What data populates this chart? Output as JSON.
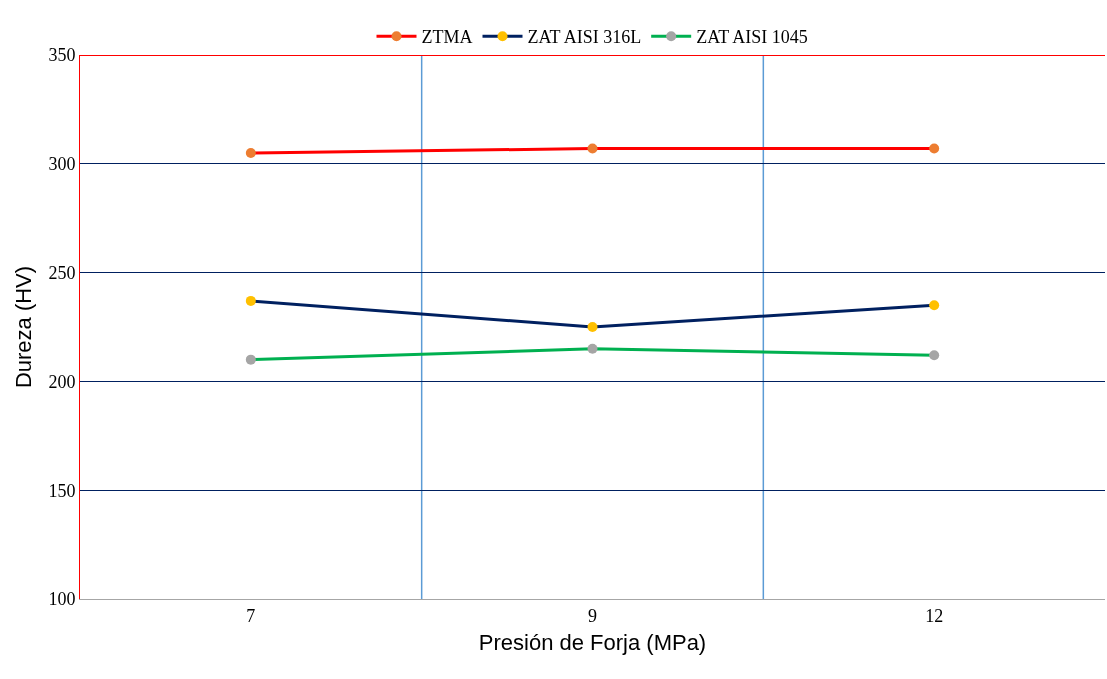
{
  "chart_data": {
    "type": "line",
    "xlabel": "Presión de Forja (MPa)",
    "ylabel": "Dureza (HV)",
    "categories": [
      "7",
      "9",
      "12"
    ],
    "series": [
      {
        "name": "ZTMA",
        "color": "#ff0000",
        "colors": [
          "#ed7d31",
          "#ed7d31",
          "#ed7d31"
        ],
        "values": [
          305,
          307,
          307
        ]
      },
      {
        "name": "ZAT AISI 316L",
        "color": "#002060",
        "colors": [
          "#ffc000",
          "#ffc000",
          "#ffc000"
        ],
        "values": [
          237,
          225,
          235
        ]
      },
      {
        "name": "ZAT AISI 1045",
        "color": "#00b050",
        "colors": [
          "#a5a5a5",
          "#a5a5a5",
          "#a5a5a5"
        ],
        "values": [
          210,
          215,
          212
        ]
      }
    ],
    "ylim": [
      100,
      350
    ],
    "yticks": [
      100,
      150,
      200,
      250,
      300,
      350
    ],
    "grid": true,
    "legend": "top",
    "marker": "circle",
    "line_style": "solid"
  }
}
